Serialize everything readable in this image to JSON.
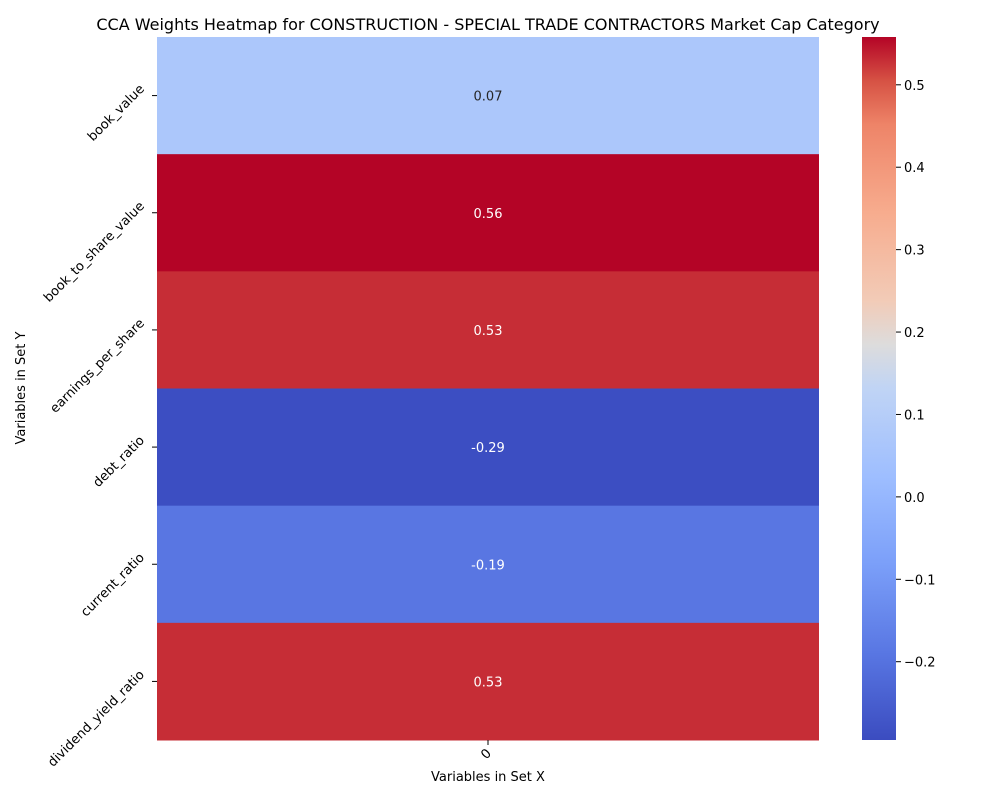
{
  "chart_data": {
    "type": "heatmap",
    "title": "CCA Weights Heatmap for CONSTRUCTION - SPECIAL TRADE CONTRACTORS Market Cap Category",
    "xlabel": "Variables in Set X",
    "ylabel": "Variables in Set Y",
    "x_categories": [
      "0"
    ],
    "y_categories": [
      "book_value",
      "book_to_share_value",
      "earnings_per_share",
      "debt_ratio",
      "current_ratio",
      "dividend_yield_ratio"
    ],
    "values": [
      0.07,
      0.56,
      0.53,
      -0.29,
      -0.19,
      0.53
    ],
    "value_labels": [
      "0.07",
      "0.56",
      "0.53",
      "-0.29",
      "-0.19",
      "0.53"
    ],
    "colormap": "coolwarm",
    "vmin": -0.295,
    "vmax": 0.558,
    "colorbar_ticks": [
      0.5,
      0.4,
      0.3,
      0.2,
      0.1,
      0.0,
      -0.1,
      -0.2
    ],
    "colorbar_tick_labels": [
      "0.5",
      "0.4",
      "0.3",
      "0.2",
      "0.1",
      "0.0",
      "−0.1",
      "−0.2"
    ]
  }
}
